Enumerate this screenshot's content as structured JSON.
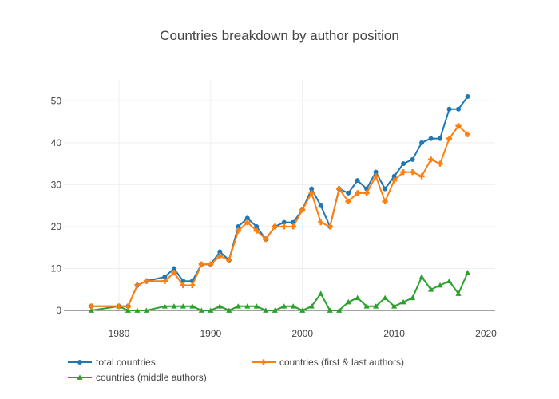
{
  "chart_data": {
    "type": "line",
    "title": "Countries breakdown by author position",
    "xlabel": "",
    "ylabel": "",
    "xlim": [
      1974,
      2021
    ],
    "ylim": [
      -1,
      55
    ],
    "xticks": [
      1980,
      1990,
      2000,
      2010,
      2020
    ],
    "yticks": [
      0,
      10,
      20,
      30,
      40,
      50
    ],
    "grid": true,
    "legend_position": "bottom",
    "series": [
      {
        "name": "total countries",
        "color": "#1f77b4",
        "marker": "circle",
        "x": [
          1977,
          1980,
          1981,
          1982,
          1983,
          1985,
          1986,
          1987,
          1988,
          1989,
          1990,
          1991,
          1992,
          1993,
          1994,
          1995,
          1996,
          1997,
          1998,
          1999,
          2000,
          2001,
          2002,
          2003,
          2004,
          2005,
          2006,
          2007,
          2008,
          2009,
          2010,
          2011,
          2012,
          2013,
          2014,
          2015,
          2016,
          2017,
          2018
        ],
        "y": [
          1,
          1,
          1,
          6,
          7,
          8,
          10,
          7,
          7,
          11,
          11,
          14,
          12,
          20,
          22,
          20,
          17,
          20,
          21,
          21,
          24,
          29,
          25,
          20,
          29,
          28,
          31,
          29,
          33,
          29,
          32,
          35,
          36,
          40,
          41,
          41,
          48,
          48,
          51
        ]
      },
      {
        "name": "countries (first & last authors)",
        "color": "#ff7f0e",
        "marker": "cross",
        "x": [
          1977,
          1980,
          1981,
          1982,
          1983,
          1985,
          1986,
          1987,
          1988,
          1989,
          1990,
          1991,
          1992,
          1993,
          1994,
          1995,
          1996,
          1997,
          1998,
          1999,
          2000,
          2001,
          2002,
          2003,
          2004,
          2005,
          2006,
          2007,
          2008,
          2009,
          2010,
          2011,
          2012,
          2013,
          2014,
          2015,
          2016,
          2017,
          2018
        ],
        "y": [
          1,
          1,
          1,
          6,
          7,
          7,
          9,
          6,
          6,
          11,
          11,
          13,
          12,
          19,
          21,
          19,
          17,
          20,
          20,
          20,
          24,
          28,
          21,
          20,
          29,
          26,
          28,
          28,
          32,
          26,
          31,
          33,
          33,
          32,
          36,
          35,
          41,
          44,
          42
        ]
      },
      {
        "name": "countries (middle authors)",
        "color": "#2ca02c",
        "marker": "triangle-up",
        "x": [
          1977,
          1980,
          1981,
          1982,
          1983,
          1985,
          1986,
          1987,
          1988,
          1989,
          1990,
          1991,
          1992,
          1993,
          1994,
          1995,
          1996,
          1997,
          1998,
          1999,
          2000,
          2001,
          2002,
          2003,
          2004,
          2005,
          2006,
          2007,
          2008,
          2009,
          2010,
          2011,
          2012,
          2013,
          2014,
          2015,
          2016,
          2017,
          2018
        ],
        "y": [
          0,
          1,
          0,
          0,
          0,
          1,
          1,
          1,
          1,
          0,
          0,
          1,
          0,
          1,
          1,
          1,
          0,
          0,
          1,
          1,
          0,
          1,
          4,
          0,
          0,
          2,
          3,
          1,
          1,
          3,
          1,
          2,
          3,
          8,
          5,
          6,
          7,
          4,
          9
        ]
      }
    ]
  }
}
